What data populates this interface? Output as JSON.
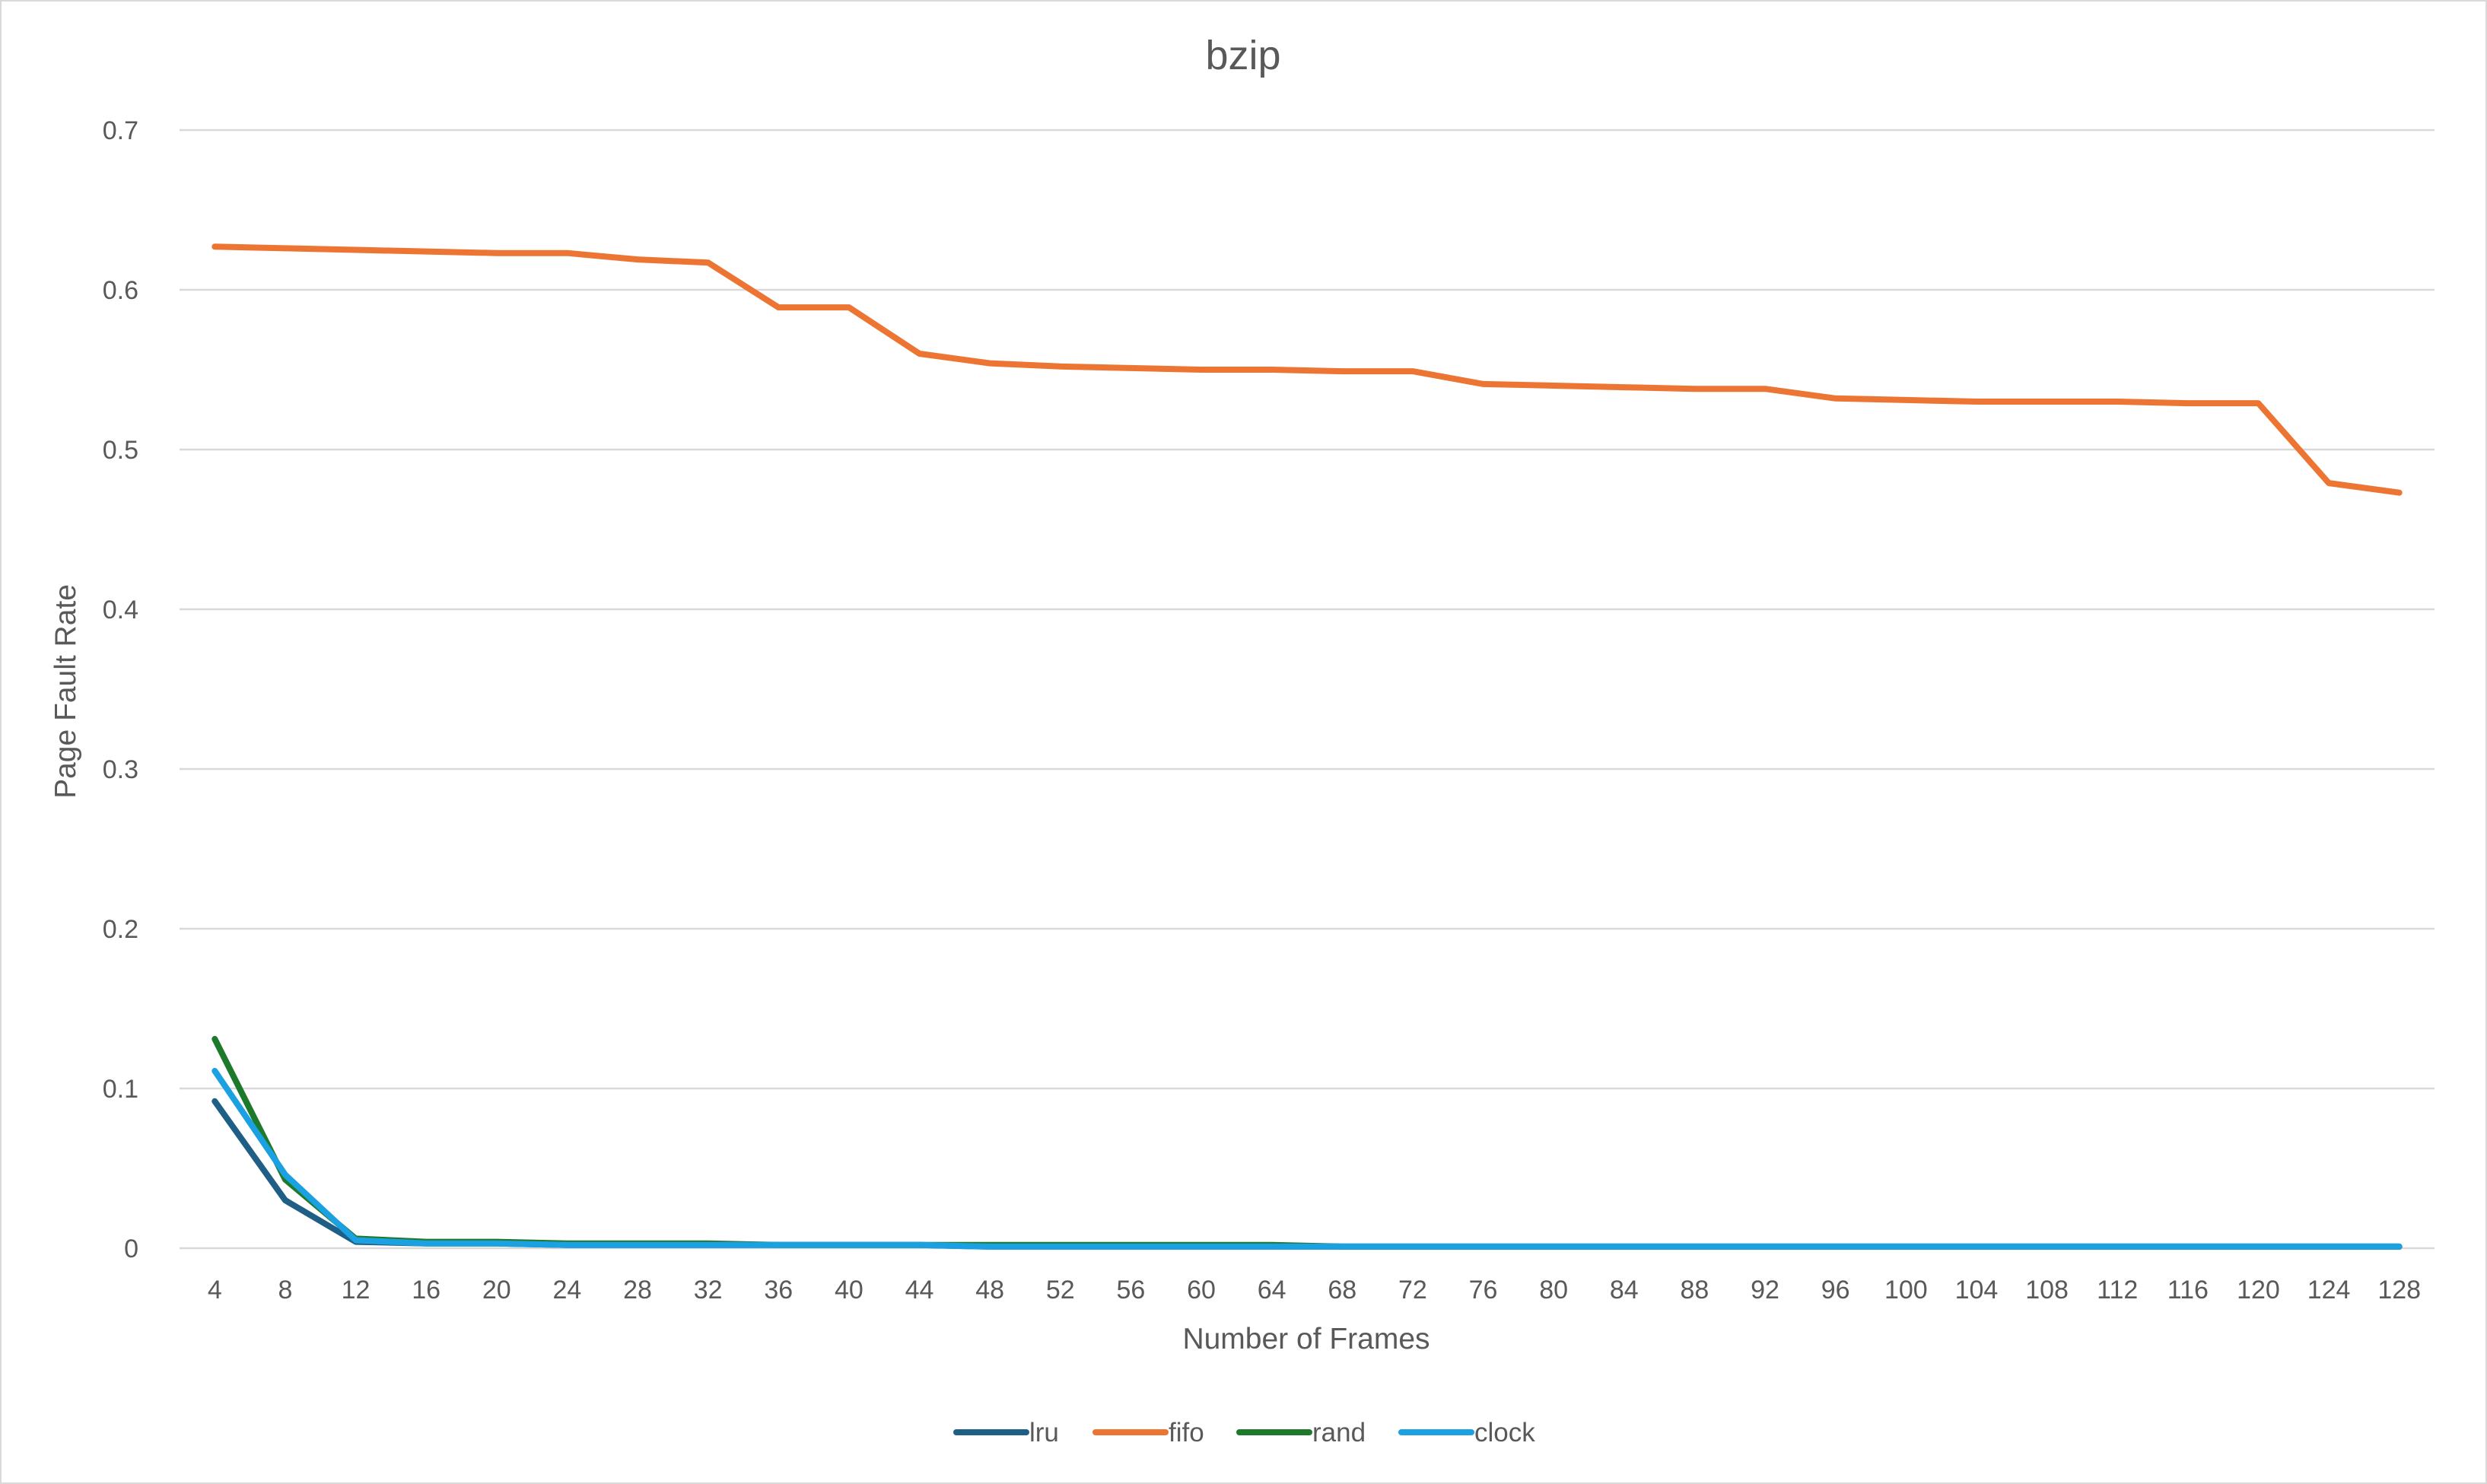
{
  "chart_data": {
    "type": "line",
    "title": "bzip",
    "xlabel": "Number of Frames",
    "ylabel": "Page Fault Rate",
    "ylim": [
      0,
      0.7
    ],
    "yticks": [
      "0",
      "0.1",
      "0.2",
      "0.3",
      "0.4",
      "0.5",
      "0.6",
      "0.7"
    ],
    "grid": true,
    "legend_position": "bottom",
    "categories": [
      "4",
      "8",
      "12",
      "16",
      "20",
      "24",
      "28",
      "32",
      "36",
      "40",
      "44",
      "48",
      "52",
      "56",
      "60",
      "64",
      "68",
      "72",
      "76",
      "80",
      "84",
      "88",
      "92",
      "96",
      "100",
      "104",
      "108",
      "112",
      "116",
      "120",
      "124",
      "128"
    ],
    "series": [
      {
        "name": "lru",
        "color": "#1f5f86",
        "values": [
          0.092,
          0.03,
          0.004,
          0.003,
          0.003,
          0.002,
          0.002,
          0.002,
          0.002,
          0.002,
          0.002,
          0.001,
          0.001,
          0.001,
          0.001,
          0.001,
          0.001,
          0.001,
          0.001,
          0.001,
          0.001,
          0.001,
          0.001,
          0.001,
          0.001,
          0.001,
          0.001,
          0.001,
          0.001,
          0.001,
          0.001,
          0.001
        ]
      },
      {
        "name": "fifo",
        "color": "#ed7534",
        "values": [
          0.627,
          0.626,
          0.625,
          0.624,
          0.623,
          0.623,
          0.619,
          0.617,
          0.589,
          0.589,
          0.56,
          0.554,
          0.552,
          0.551,
          0.55,
          0.55,
          0.549,
          0.549,
          0.541,
          0.54,
          0.539,
          0.538,
          0.538,
          0.532,
          0.531,
          0.53,
          0.53,
          0.53,
          0.529,
          0.529,
          0.479,
          0.473
        ]
      },
      {
        "name": "rand",
        "color": "#1e7a2b",
        "values": [
          0.131,
          0.043,
          0.006,
          0.004,
          0.004,
          0.003,
          0.003,
          0.003,
          0.002,
          0.002,
          0.002,
          0.002,
          0.002,
          0.002,
          0.002,
          0.002,
          0.001,
          0.001,
          0.001,
          0.001,
          0.001,
          0.001,
          0.001,
          0.001,
          0.001,
          0.001,
          0.001,
          0.001,
          0.001,
          0.001,
          0.001,
          0.001
        ]
      },
      {
        "name": "clock",
        "color": "#1ba1e2",
        "values": [
          0.111,
          0.046,
          0.005,
          0.003,
          0.003,
          0.002,
          0.002,
          0.002,
          0.002,
          0.002,
          0.002,
          0.001,
          0.001,
          0.001,
          0.001,
          0.001,
          0.001,
          0.001,
          0.001,
          0.001,
          0.001,
          0.001,
          0.001,
          0.001,
          0.001,
          0.001,
          0.001,
          0.001,
          0.001,
          0.001,
          0.001,
          0.001
        ]
      }
    ]
  }
}
